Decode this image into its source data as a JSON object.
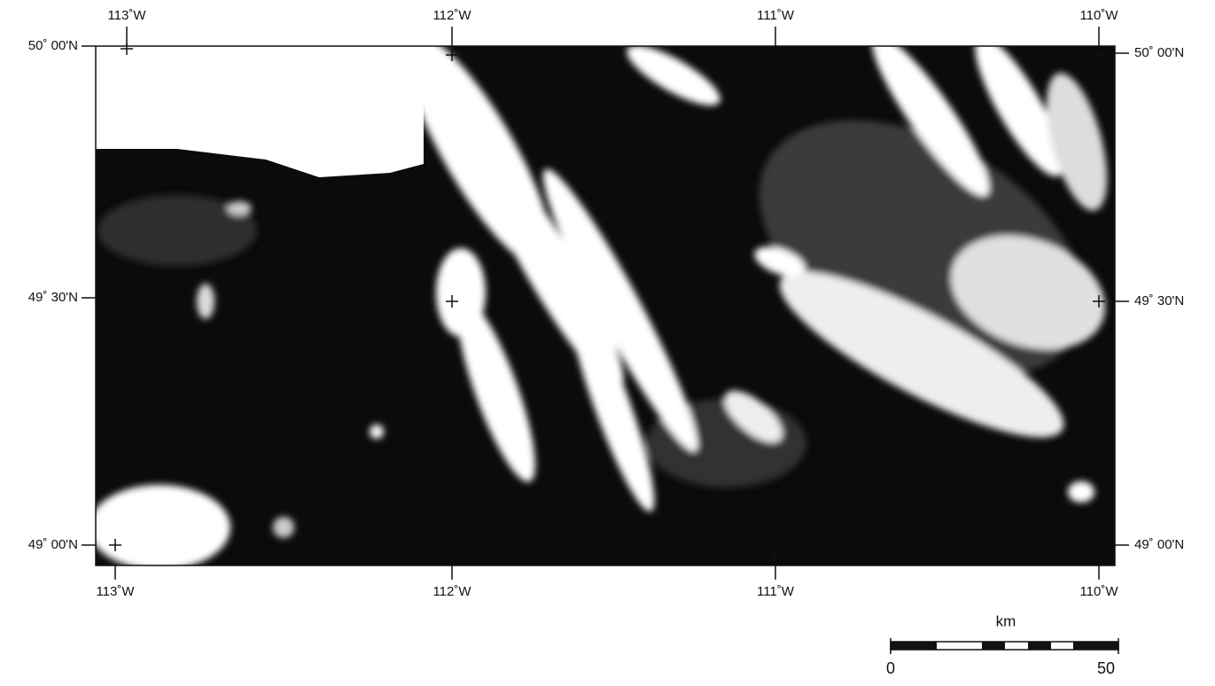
{
  "map": {
    "top_labels": [
      "113˚W",
      "112˚W",
      "111˚W",
      "110˚W"
    ],
    "bottom_labels": [
      "113˚W",
      "112˚W",
      "111˚W",
      "110˚W"
    ],
    "left_labels": [
      "50˚ 00'N",
      "49˚ 30'N",
      "49˚ 00'N"
    ],
    "right_labels": [
      "50˚ 00'N",
      "49˚ 30'N",
      "49˚ 00'N"
    ],
    "scale": {
      "unit": "km",
      "ticks": [
        0,
        50
      ]
    }
  }
}
